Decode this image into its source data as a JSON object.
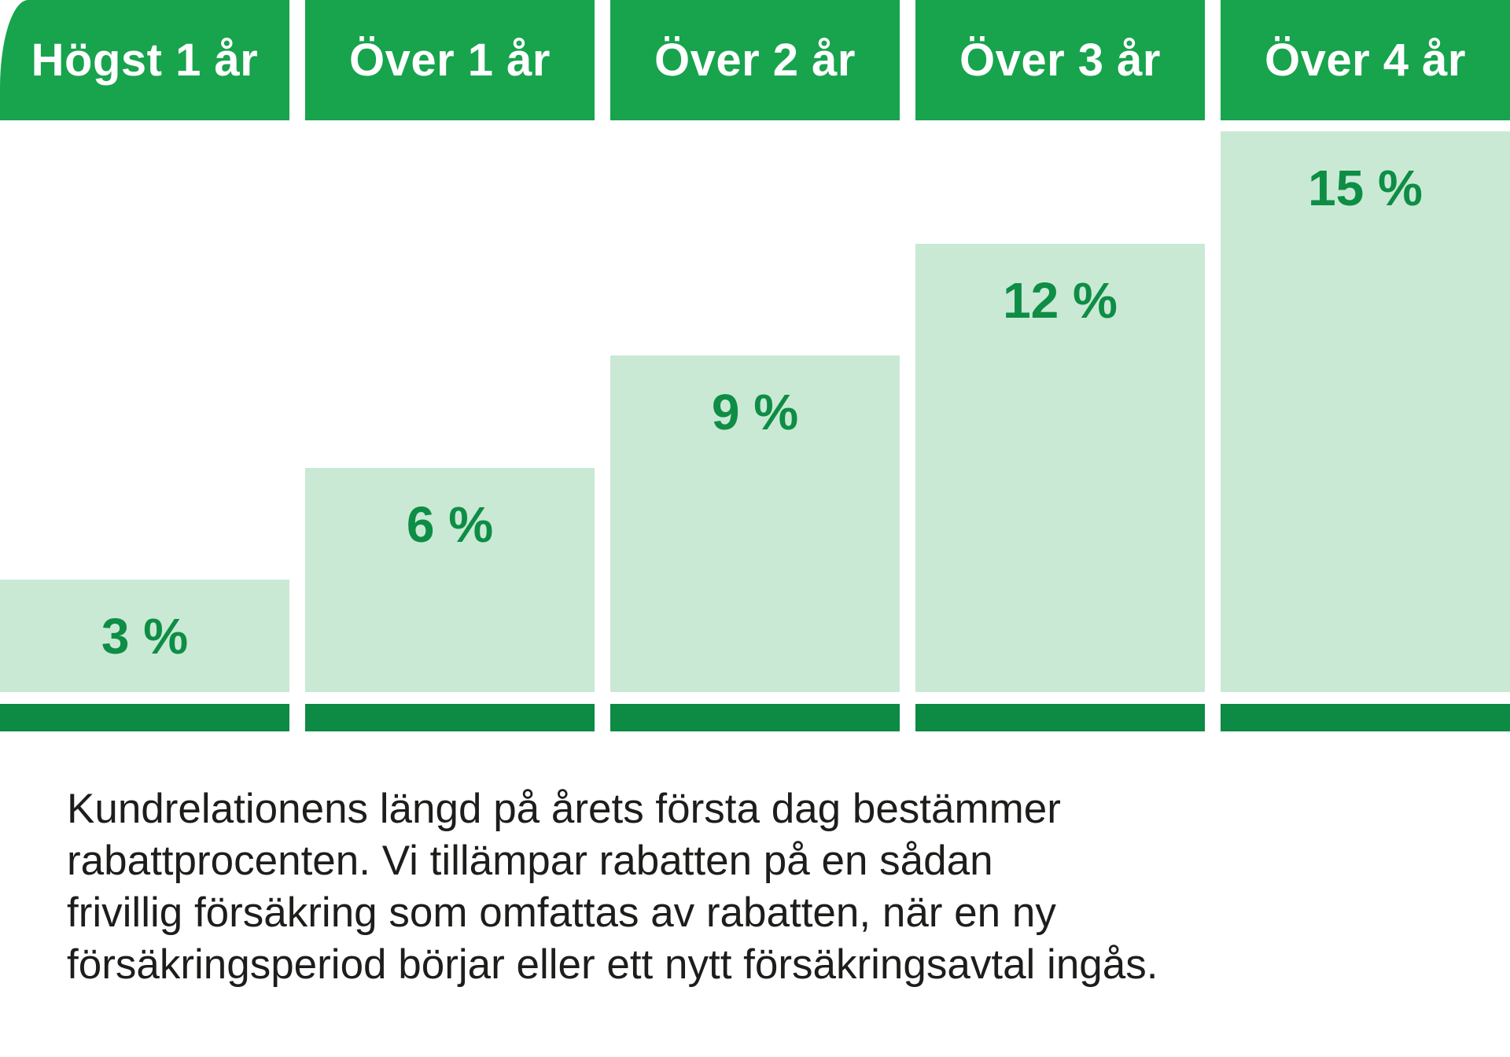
{
  "colors": {
    "background": "#ffffff",
    "tab_green": "#18a34d",
    "bar_light_green": "#c9e9d5",
    "label_green": "#0e8d45",
    "strip_green": "#0d8a43",
    "text_color": "#1d1d1b"
  },
  "chart_data": {
    "type": "bar",
    "title": "",
    "categories": [
      "Högst 1 år",
      "Över 1 år",
      "Över 2 år",
      "Över 3 år",
      "Över 4 år"
    ],
    "values": [
      3,
      6,
      9,
      12,
      15
    ],
    "value_labels": [
      "3 %",
      "6 %",
      "9 %",
      "12 %",
      "15 %"
    ],
    "unit": "%",
    "ylim": [
      0,
      15
    ],
    "grid": false,
    "legend": "none",
    "bar_color": "#c9e9d5",
    "label_color": "#0e8d45"
  },
  "caption": {
    "lines": [
      "Kundrelationens längd på årets första dag bestämmer",
      "rabattprocenten. Vi tillämpar rabatten på en sådan",
      "frivillig försäkring som omfattas av rabatten, när en ny",
      "försäkringsperiod börjar eller ett nytt försäkringsavtal ingås."
    ]
  }
}
